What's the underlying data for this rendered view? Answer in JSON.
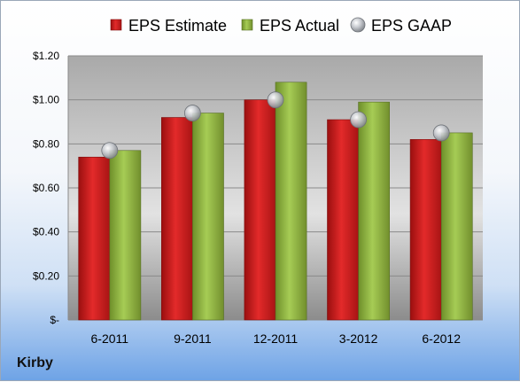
{
  "company": "Kirby",
  "chart_data": {
    "type": "bar",
    "title": "",
    "xlabel": "",
    "ylabel": "",
    "categories": [
      "6-2011",
      "9-2011",
      "12-2011",
      "3-2012",
      "6-2012"
    ],
    "series": [
      {
        "name": "EPS Estimate",
        "kind": "bar",
        "color": "#cc1e1e",
        "values": [
          0.74,
          0.92,
          1.0,
          0.91,
          0.82
        ]
      },
      {
        "name": "EPS Actual",
        "kind": "bar",
        "color": "#8bb43a",
        "values": [
          0.77,
          0.94,
          1.08,
          0.99,
          0.85
        ]
      },
      {
        "name": "EPS GAAP",
        "kind": "marker",
        "color": "#b8bcc2",
        "values": [
          0.77,
          0.94,
          1.0,
          0.91,
          0.85
        ]
      }
    ],
    "ylim": [
      0,
      1.2
    ],
    "yticks": [
      0,
      0.2,
      0.4,
      0.6,
      0.8,
      1.0,
      1.2
    ],
    "ytick_labels": [
      "$-",
      "$0.20",
      "$0.40",
      "$0.60",
      "$0.80",
      "$1.00",
      "$1.20"
    ],
    "grid": true,
    "legend": "top"
  }
}
